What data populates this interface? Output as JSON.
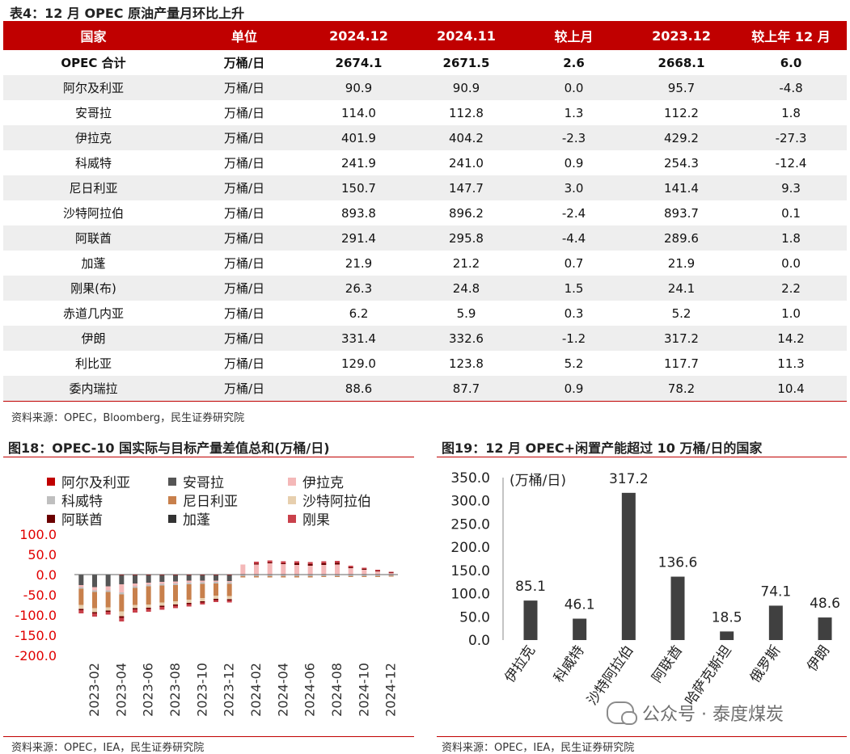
{
  "table": {
    "title": "表4：12 月 OPEC 原油产量月环比上升",
    "headers": [
      "国家",
      "单位",
      "2024.12",
      "2024.11",
      "较上月",
      "2023.12",
      "较上年 12 月"
    ],
    "rows": [
      [
        "OPEC 合计",
        "万桶/日",
        "2674.1",
        "2671.5",
        "2.6",
        "2668.1",
        "6.0"
      ],
      [
        "阿尔及利亚",
        "万桶/日",
        "90.9",
        "90.9",
        "0.0",
        "95.7",
        "-4.8"
      ],
      [
        "安哥拉",
        "万桶/日",
        "114.0",
        "112.8",
        "1.3",
        "112.2",
        "1.8"
      ],
      [
        "伊拉克",
        "万桶/日",
        "401.9",
        "404.2",
        "-2.3",
        "429.2",
        "-27.3"
      ],
      [
        "科威特",
        "万桶/日",
        "241.9",
        "241.0",
        "0.9",
        "254.3",
        "-12.4"
      ],
      [
        "尼日利亚",
        "万桶/日",
        "150.7",
        "147.7",
        "3.0",
        "141.4",
        "9.3"
      ],
      [
        "沙特阿拉伯",
        "万桶/日",
        "893.8",
        "896.2",
        "-2.4",
        "893.7",
        "0.1"
      ],
      [
        "阿联酋",
        "万桶/日",
        "291.4",
        "295.8",
        "-4.4",
        "289.6",
        "1.8"
      ],
      [
        "加蓬",
        "万桶/日",
        "21.9",
        "21.2",
        "0.7",
        "21.9",
        "0.0"
      ],
      [
        "刚果(布)",
        "万桶/日",
        "26.3",
        "24.8",
        "1.5",
        "24.1",
        "2.2"
      ],
      [
        "赤道几内亚",
        "万桶/日",
        "6.2",
        "5.9",
        "0.3",
        "5.2",
        "1.0"
      ],
      [
        "伊朗",
        "万桶/日",
        "331.4",
        "332.6",
        "-1.2",
        "317.2",
        "14.2"
      ],
      [
        "利比亚",
        "万桶/日",
        "129.0",
        "123.8",
        "5.2",
        "117.7",
        "11.3"
      ],
      [
        "委内瑞拉",
        "万桶/日",
        "88.6",
        "87.7",
        "0.9",
        "78.2",
        "10.4"
      ]
    ],
    "source": "资料来源：OPEC，Bloomberg，民生证券研究院",
    "colors": {
      "header": "#c00000",
      "positive": "#c00000",
      "negative": "#1a8a1a",
      "stripe": "#eeeeee"
    }
  },
  "chart_data": [
    {
      "type": "bar",
      "stacked": true,
      "title": "图18：OPEC-10 国实际与目标产量差值总和(万桶/日)",
      "source": "资料来源：OPEC，IEA，民生证券研究院",
      "ylim": [
        -200,
        100
      ],
      "yticks": [
        "100.0",
        "50.0",
        "0.0",
        "-50.0",
        "-100.0",
        "-150.0",
        "-200.0"
      ],
      "ytick_values": [
        100,
        50,
        0,
        -50,
        -100,
        -150,
        -200
      ],
      "x_tick_labels": [
        "2023-02",
        "2023-04",
        "2023-06",
        "2023-08",
        "2023-10",
        "2023-12",
        "2024-02",
        "2024-04",
        "2024-06",
        "2024-08",
        "2024-10",
        "2024-12"
      ],
      "categories": [
        "2023-01",
        "2023-02",
        "2023-03",
        "2023-04",
        "2023-05",
        "2023-06",
        "2023-07",
        "2023-08",
        "2023-09",
        "2023-10",
        "2023-11",
        "2023-12",
        "2024-01",
        "2024-02",
        "2024-03",
        "2024-04",
        "2024-05",
        "2024-06",
        "2024-07",
        "2024-08",
        "2024-09",
        "2024-10",
        "2024-11",
        "2024-12"
      ],
      "legend_position": "top",
      "series": [
        {
          "name": "阿尔及利亚",
          "color": "#c00000",
          "values": [
            -1,
            -1,
            -1,
            -2,
            -2,
            -2,
            -2,
            -2,
            -2,
            -2,
            -2,
            -2,
            -1,
            -1,
            -1,
            -1,
            -1,
            -1,
            -1,
            -1,
            -1,
            -1,
            -1,
            -1
          ]
        },
        {
          "name": "安哥拉",
          "color": "#555555",
          "values": [
            -25,
            -30,
            -28,
            -22,
            -20,
            -18,
            -16,
            -15,
            -13,
            -13,
            -13,
            -14,
            0,
            0,
            0,
            0,
            0,
            0,
            0,
            0,
            0,
            0,
            0,
            0
          ]
        },
        {
          "name": "伊拉克",
          "color": "#f4b8b8",
          "values": [
            -5,
            -8,
            -10,
            -20,
            -7,
            -5,
            -5,
            -5,
            -5,
            -4,
            -3,
            -3,
            25,
            25,
            28,
            26,
            24,
            22,
            24,
            25,
            16,
            12,
            8,
            4
          ]
        },
        {
          "name": "科威特",
          "color": "#bfbfbf",
          "values": [
            -4,
            -4,
            -4,
            -5,
            -4,
            -4,
            -4,
            -4,
            -4,
            -4,
            -4,
            -4,
            -3,
            -3,
            -3,
            -3,
            -3,
            -3,
            -3,
            -3,
            -3,
            -3,
            -3,
            -2
          ]
        },
        {
          "name": "尼日利亚",
          "color": "#c8804c",
          "values": [
            -40,
            -40,
            -38,
            -42,
            -42,
            -45,
            -42,
            -40,
            -38,
            -35,
            -30,
            -30,
            -3,
            -3,
            -3,
            -3,
            -3,
            -3,
            -2,
            -2,
            -2,
            -2,
            -2,
            -2
          ]
        },
        {
          "name": "沙特阿拉伯",
          "color": "#e7cfae",
          "values": [
            -10,
            -10,
            -8,
            -12,
            -8,
            -8,
            -8,
            -8,
            -8,
            -8,
            -8,
            -8,
            0,
            0,
            0,
            0,
            0,
            0,
            0,
            0,
            0,
            0,
            0,
            0
          ]
        },
        {
          "name": "阿联酋",
          "color": "#6b0000",
          "values": [
            -3,
            -3,
            -3,
            -4,
            -3,
            -3,
            -3,
            -3,
            -3,
            -3,
            -3,
            -3,
            0,
            2,
            2,
            2,
            4,
            4,
            4,
            4,
            2,
            2,
            1,
            1
          ]
        },
        {
          "name": "加蓬",
          "color": "#333333",
          "values": [
            0,
            0,
            0,
            0,
            0,
            0,
            0,
            0,
            0,
            0,
            0,
            0,
            0,
            0,
            0,
            0,
            0,
            0,
            0,
            0,
            0,
            0,
            0,
            0
          ]
        },
        {
          "name": "刚果",
          "color": "#c9414b",
          "values": [
            -8,
            -8,
            -7,
            -9,
            -8,
            -7,
            -7,
            -6,
            -6,
            -5,
            -5,
            -5,
            0,
            5,
            5,
            5,
            5,
            5,
            5,
            5,
            4,
            3,
            3,
            2
          ]
        }
      ]
    },
    {
      "type": "bar",
      "title": "图19：12 月 OPEC+闲置产能超过 10 万桶/日的国家",
      "source": "资料来源：OPEC，IEA，民生证券研究院",
      "ylabel": "(万桶/日)",
      "ylim": [
        0,
        350
      ],
      "yticks": [
        "350.0",
        "300.0",
        "250.0",
        "200.0",
        "150.0",
        "100.0",
        "50.0",
        "0.0"
      ],
      "ytick_values": [
        350,
        300,
        250,
        200,
        150,
        100,
        50,
        0
      ],
      "categories": [
        "伊拉克",
        "科威特",
        "沙特阿拉伯",
        "阿联酋",
        "哈萨克斯坦",
        "俄罗斯",
        "伊朗"
      ],
      "values": [
        85.1,
        46.1,
        317.2,
        136.6,
        18.5,
        74.1,
        48.6
      ],
      "labels": [
        "85.1",
        "46.1",
        "317.2",
        "136.6",
        "18.5",
        "74.1",
        "48.6"
      ],
      "color": "#404040"
    }
  ],
  "watermark": {
    "text": "公众号 · 泰度煤炭"
  }
}
